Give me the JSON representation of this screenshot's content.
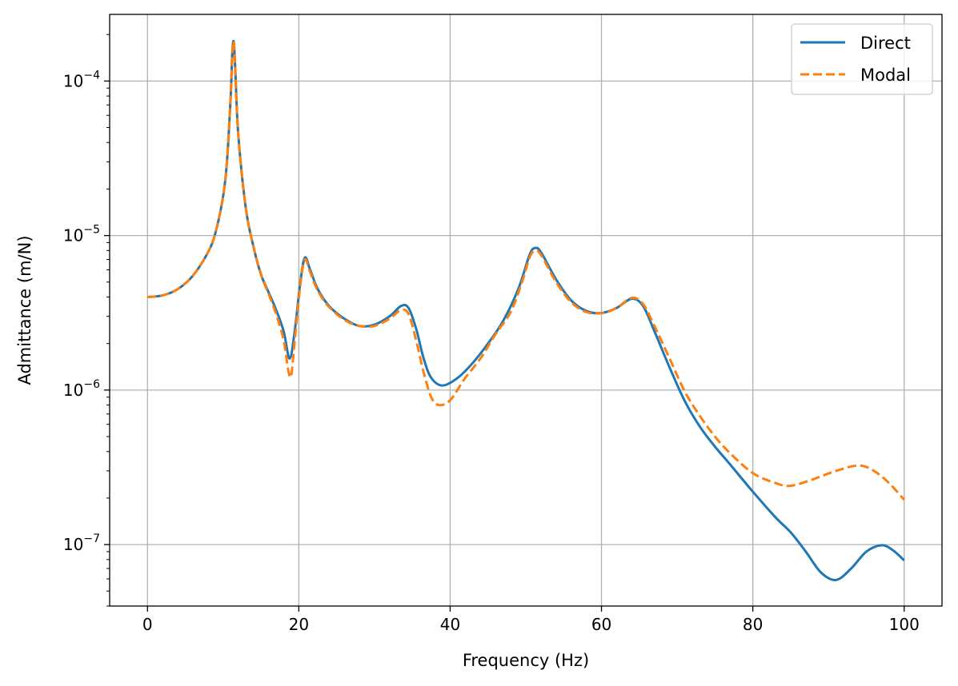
{
  "chart_data": {
    "type": "line",
    "xlabel": "Frequency (Hz)",
    "ylabel": "Admittance (m/N)",
    "xlim": [
      -5,
      105
    ],
    "ylim": [
      4e-08,
      0.00027
    ],
    "yscale": "log",
    "grid": true,
    "legend_position": "top-right",
    "x_ticks": [
      0,
      20,
      40,
      60,
      80,
      100
    ],
    "x_tick_labels": [
      "0",
      "20",
      "40",
      "60",
      "80",
      "100"
    ],
    "y_ticks": [
      1e-07,
      1e-06,
      1e-05,
      0.0001
    ],
    "y_tick_labels": [
      {
        "base": "10",
        "exp": "−7"
      },
      {
        "base": "10",
        "exp": "−6"
      },
      {
        "base": "10",
        "exp": "−5"
      },
      {
        "base": "10",
        "exp": "−4"
      }
    ],
    "series": [
      {
        "name": "Direct",
        "color": "#1f77b4",
        "dash": "solid",
        "points": [
          [
            0,
            4e-06
          ],
          [
            2,
            4.1e-06
          ],
          [
            4,
            4.5e-06
          ],
          [
            6,
            5.5e-06
          ],
          [
            8,
            7.8e-06
          ],
          [
            9,
            1.05e-05
          ],
          [
            10,
            1.8e-05
          ],
          [
            10.5,
            3e-05
          ],
          [
            11,
            8e-05
          ],
          [
            11.2,
            0.00015
          ],
          [
            11.4,
            0.00018
          ],
          [
            11.6,
            0.00012
          ],
          [
            12,
            4.5e-05
          ],
          [
            13,
            1.5e-05
          ],
          [
            14,
            8.5e-06
          ],
          [
            15,
            5.6e-06
          ],
          [
            16,
            4.3e-06
          ],
          [
            17,
            3.3e-06
          ],
          [
            18,
            2.4e-06
          ],
          [
            18.8,
            1.6e-06
          ],
          [
            19.5,
            2.5e-06
          ],
          [
            20.2,
            5e-06
          ],
          [
            20.8,
            7.2e-06
          ],
          [
            21.5,
            6e-06
          ],
          [
            22.5,
            4.5e-06
          ],
          [
            24,
            3.5e-06
          ],
          [
            26,
            2.9e-06
          ],
          [
            28,
            2.6e-06
          ],
          [
            30,
            2.65e-06
          ],
          [
            32,
            3e-06
          ],
          [
            33.5,
            3.5e-06
          ],
          [
            34.5,
            3.4e-06
          ],
          [
            35.5,
            2.5e-06
          ],
          [
            36.5,
            1.6e-06
          ],
          [
            37.5,
            1.2e-06
          ],
          [
            39,
            1.07e-06
          ],
          [
            41,
            1.2e-06
          ],
          [
            43,
            1.5e-06
          ],
          [
            45,
            2e-06
          ],
          [
            47,
            2.8e-06
          ],
          [
            49,
            4.5e-06
          ],
          [
            50.5,
            7.5e-06
          ],
          [
            51.2,
            8.3e-06
          ],
          [
            52,
            7.8e-06
          ],
          [
            54,
            5.2e-06
          ],
          [
            56,
            3.8e-06
          ],
          [
            58,
            3.25e-06
          ],
          [
            60,
            3.15e-06
          ],
          [
            62,
            3.4e-06
          ],
          [
            64,
            3.9e-06
          ],
          [
            65.5,
            3.5e-06
          ],
          [
            67,
            2.4e-06
          ],
          [
            69,
            1.4e-06
          ],
          [
            71,
            8.5e-07
          ],
          [
            73,
            5.8e-07
          ],
          [
            75,
            4.3e-07
          ],
          [
            77,
            3.3e-07
          ],
          [
            80,
            2.2e-07
          ],
          [
            83,
            1.5e-07
          ],
          [
            85,
            1.2e-07
          ],
          [
            87,
            9e-08
          ],
          [
            89,
            6.6e-08
          ],
          [
            91,
            5.9e-08
          ],
          [
            93,
            7e-08
          ],
          [
            95,
            9e-08
          ],
          [
            97,
            9.9e-08
          ],
          [
            98.5,
            9.2e-08
          ],
          [
            100,
            7.9e-08
          ]
        ]
      },
      {
        "name": "Modal",
        "color": "#ff7f0e",
        "dash": "dashed",
        "points": [
          [
            0,
            4e-06
          ],
          [
            2,
            4.1e-06
          ],
          [
            4,
            4.5e-06
          ],
          [
            6,
            5.5e-06
          ],
          [
            8,
            7.8e-06
          ],
          [
            9,
            1.05e-05
          ],
          [
            10,
            1.8e-05
          ],
          [
            10.5,
            3e-05
          ],
          [
            11,
            8e-05
          ],
          [
            11.2,
            0.00015
          ],
          [
            11.4,
            0.00018
          ],
          [
            11.6,
            0.00012
          ],
          [
            12,
            4.5e-05
          ],
          [
            13,
            1.5e-05
          ],
          [
            14,
            8.5e-06
          ],
          [
            15,
            5.6e-06
          ],
          [
            16,
            4.2e-06
          ],
          [
            17,
            3.1e-06
          ],
          [
            18,
            2.1e-06
          ],
          [
            18.6,
            1.35e-06
          ],
          [
            19,
            1.25e-06
          ],
          [
            19.5,
            2.2e-06
          ],
          [
            20.2,
            4.8e-06
          ],
          [
            20.8,
            7e-06
          ],
          [
            21.5,
            5.8e-06
          ],
          [
            22.5,
            4.4e-06
          ],
          [
            24,
            3.45e-06
          ],
          [
            26,
            2.85e-06
          ],
          [
            28,
            2.6e-06
          ],
          [
            30,
            2.6e-06
          ],
          [
            32,
            2.9e-06
          ],
          [
            33.5,
            3.3e-06
          ],
          [
            34.5,
            3.1e-06
          ],
          [
            35.5,
            2.1e-06
          ],
          [
            36.5,
            1.3e-06
          ],
          [
            37.5,
            9e-07
          ],
          [
            38.5,
            8e-07
          ],
          [
            40,
            8.6e-07
          ],
          [
            42,
            1.2e-06
          ],
          [
            44,
            1.6e-06
          ],
          [
            46,
            2.3e-06
          ],
          [
            48,
            3.2e-06
          ],
          [
            49.5,
            5e-06
          ],
          [
            50.5,
            7.2e-06
          ],
          [
            51.2,
            8e-06
          ],
          [
            52,
            7.5e-06
          ],
          [
            54,
            5e-06
          ],
          [
            56,
            3.7e-06
          ],
          [
            58,
            3.2e-06
          ],
          [
            60,
            3.15e-06
          ],
          [
            62,
            3.4e-06
          ],
          [
            64,
            3.95e-06
          ],
          [
            65.5,
            3.6e-06
          ],
          [
            67,
            2.6e-06
          ],
          [
            69,
            1.6e-06
          ],
          [
            71,
            9.8e-07
          ],
          [
            73,
            6.8e-07
          ],
          [
            75,
            5e-07
          ],
          [
            77,
            3.9e-07
          ],
          [
            80,
            2.9e-07
          ],
          [
            83,
            2.5e-07
          ],
          [
            85,
            2.4e-07
          ],
          [
            88,
            2.65e-07
          ],
          [
            91,
            3e-07
          ],
          [
            94,
            3.25e-07
          ],
          [
            96,
            3e-07
          ],
          [
            98,
            2.5e-07
          ],
          [
            100,
            1.95e-07
          ]
        ]
      }
    ]
  }
}
